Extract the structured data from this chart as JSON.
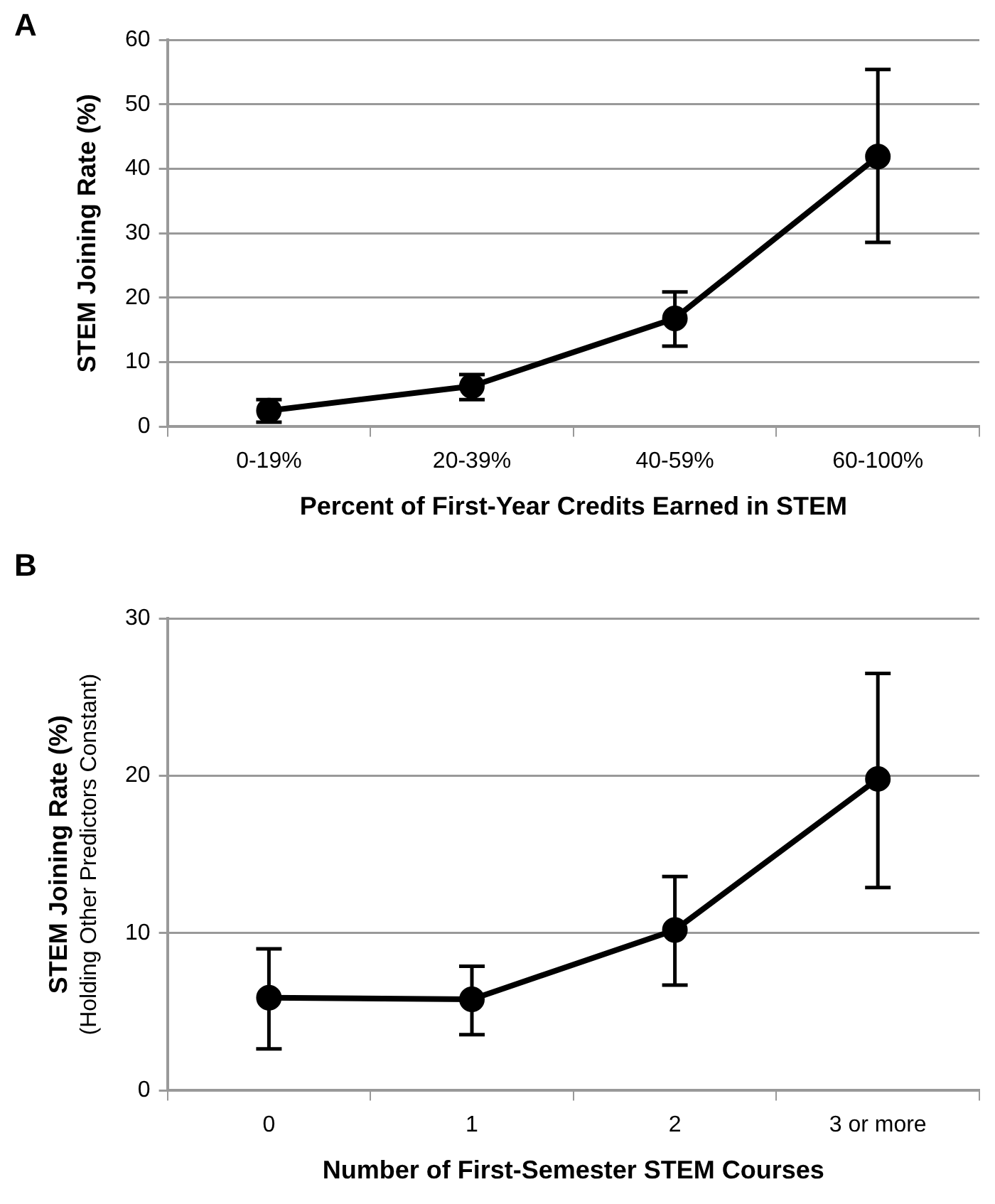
{
  "chart_data": [
    {
      "type": "line",
      "title": "A",
      "xlabel": "Percent of First-Year Credits Earned in STEM",
      "ylabel": "STEM Joining Rate (%)",
      "categories": [
        "0-19%",
        "20-39%",
        "40-59%",
        "60-100%"
      ],
      "series": [
        {
          "color": "#000000",
          "values": [
            2.5,
            6.3,
            16.8,
            41.9
          ],
          "errors": [
            [
              0.7,
              4.2
            ],
            [
              4.2,
              8.1
            ],
            [
              12.5,
              20.9
            ],
            [
              28.6,
              55.4
            ]
          ]
        }
      ],
      "ylim": [
        0,
        60
      ],
      "yticks": [
        0,
        10,
        20,
        30,
        40,
        50,
        60
      ],
      "grid": "y",
      "legend": false,
      "marker": "circle",
      "line_style": "solid"
    },
    {
      "type": "line",
      "title": "B",
      "xlabel": "Number of First-Semester STEM Courses",
      "ylabel": "STEM Joining Rate (%)\n(Holding Other Predictors Constant)",
      "categories": [
        "0",
        "1",
        "2",
        "3 or more"
      ],
      "series": [
        {
          "color": "#000000",
          "values": [
            5.9,
            5.8,
            10.2,
            19.8
          ],
          "errors": [
            [
              2.65,
              9.0
            ],
            [
              3.55,
              7.9
            ],
            [
              6.7,
              13.6
            ],
            [
              12.9,
              26.5
            ]
          ]
        }
      ],
      "ylim": [
        0,
        30
      ],
      "yticks": [
        0,
        10,
        20,
        30
      ],
      "grid": "y",
      "legend": false,
      "marker": "circle",
      "line_style": "solid"
    }
  ]
}
